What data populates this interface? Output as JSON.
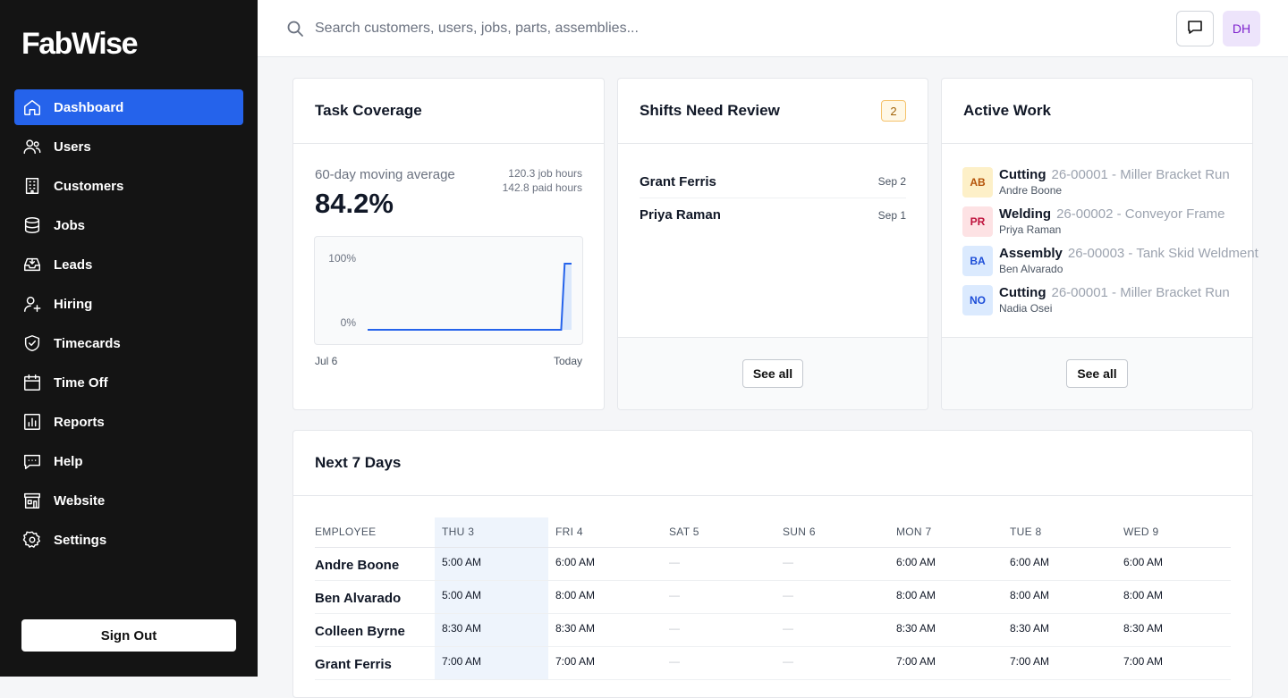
{
  "app": {
    "logo": "FabWise"
  },
  "sidebar": {
    "items": [
      {
        "label": "Dashboard",
        "icon": "home-icon",
        "active": true
      },
      {
        "label": "Users",
        "icon": "users-icon"
      },
      {
        "label": "Customers",
        "icon": "building-icon"
      },
      {
        "label": "Jobs",
        "icon": "database-icon"
      },
      {
        "label": "Leads",
        "icon": "inbox-icon"
      },
      {
        "label": "Hiring",
        "icon": "user-plus-icon"
      },
      {
        "label": "Timecards",
        "icon": "shield-check-icon"
      },
      {
        "label": "Time Off",
        "icon": "calendar-icon"
      },
      {
        "label": "Reports",
        "icon": "bar-chart-icon"
      },
      {
        "label": "Help",
        "icon": "chat-icon"
      },
      {
        "label": "Website",
        "icon": "storefront-icon"
      },
      {
        "label": "Settings",
        "icon": "gear-icon"
      }
    ],
    "sign_out": "Sign Out"
  },
  "topbar": {
    "search_placeholder": "Search customers, users, jobs, parts, assemblies...",
    "avatar_initials": "DH"
  },
  "task_coverage": {
    "title": "Task Coverage",
    "label": "60-day moving average",
    "value": "84.2%",
    "job_hours": "120.3 job hours",
    "paid_hours": "142.8 paid hours",
    "x_start": "Jul 6",
    "x_end": "Today"
  },
  "chart_data": {
    "type": "area",
    "ytick_top": "100%",
    "ytick_bottom": "0%",
    "ylim": [
      0,
      100
    ],
    "x_range": [
      "Jul 6",
      "Today"
    ],
    "series": [
      {
        "values": [
          0,
          0,
          0,
          0,
          0,
          0,
          0,
          0,
          0,
          0,
          0,
          0,
          0,
          0,
          0,
          0,
          0,
          0,
          0,
          0,
          0,
          0,
          0,
          0,
          0,
          0,
          0,
          0,
          0,
          0,
          0,
          0,
          0,
          0,
          0,
          0,
          0,
          0,
          0,
          0,
          0,
          0,
          0,
          0,
          0,
          0,
          0,
          0,
          0,
          0,
          0,
          0,
          0,
          0,
          0,
          0,
          0,
          100,
          100,
          100
        ]
      }
    ]
  },
  "shifts_review": {
    "title": "Shifts Need Review",
    "count": "2",
    "rows": [
      {
        "name": "Grant Ferris",
        "date": "Sep 2"
      },
      {
        "name": "Priya Raman",
        "date": "Sep 1"
      }
    ],
    "see_all": "See all"
  },
  "active_work": {
    "title": "Active Work",
    "rows": [
      {
        "initials": "AB",
        "task": "Cutting",
        "job": "26-00001 - Miller Bracket Run",
        "person": "Andre Boone",
        "bg": "#fdf0c8",
        "fg": "#b45309"
      },
      {
        "initials": "PR",
        "task": "Welding",
        "job": "26-00002 - Conveyor Frame",
        "person": "Priya Raman",
        "bg": "#fde2e4",
        "fg": "#be123c"
      },
      {
        "initials": "BA",
        "task": "Assembly",
        "job": "26-00003 - Tank Skid Weldment",
        "person": "Ben Alvarado",
        "bg": "#dbeafe",
        "fg": "#1d4ed8"
      },
      {
        "initials": "NO",
        "task": "Cutting",
        "job": "26-00001 - Miller Bracket Run",
        "person": "Nadia Osei",
        "bg": "#dbeafe",
        "fg": "#1d4ed8"
      }
    ],
    "see_all": "See all"
  },
  "next7": {
    "title": "Next 7 Days",
    "columns": [
      "EMPLOYEE",
      "THU 3",
      "FRI 4",
      "SAT 5",
      "SUN 6",
      "MON 7",
      "TUE 8",
      "WED 9"
    ],
    "rows": [
      {
        "name": "Andre Boone",
        "times": [
          "5:00 AM",
          "6:00 AM",
          "—",
          "—",
          "6:00 AM",
          "6:00 AM",
          "6:00 AM"
        ]
      },
      {
        "name": "Ben Alvarado",
        "times": [
          "5:00 AM",
          "8:00 AM",
          "—",
          "—",
          "8:00 AM",
          "8:00 AM",
          "8:00 AM"
        ]
      },
      {
        "name": "Colleen Byrne",
        "times": [
          "8:30 AM",
          "8:30 AM",
          "—",
          "—",
          "8:30 AM",
          "8:30 AM",
          "8:30 AM"
        ]
      },
      {
        "name": "Grant Ferris",
        "times": [
          "7:00 AM",
          "7:00 AM",
          "—",
          "—",
          "7:00 AM",
          "7:00 AM",
          "7:00 AM"
        ]
      }
    ]
  },
  "colors": {
    "sidebar_bg": "#141414",
    "accent": "#2563eb",
    "chart_line": "#2563eb",
    "chart_fill": "#dbe8fb"
  }
}
